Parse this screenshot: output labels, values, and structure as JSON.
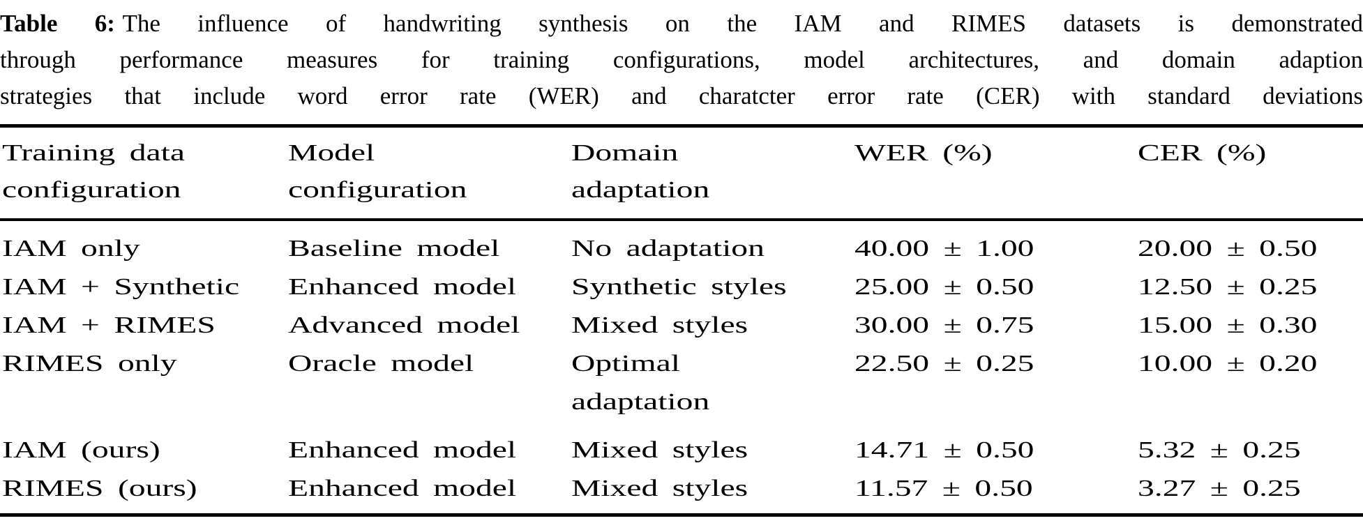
{
  "caption": {
    "label": "Table 6:",
    "line1_rest": "The influence of handwriting synthesis on the IAM and RIMES datasets is demonstrated",
    "line2": "through performance measures for training configurations, model architectures, and domain adaption",
    "line3": "strategies that include word error rate (WER) and charatcter error rate (CER) with standard deviations"
  },
  "table": {
    "headers": [
      "Training data\nconfiguration",
      "Model\nconfiguration",
      "Domain\nadaptation",
      "WER (%)",
      "CER (%)"
    ],
    "rows": [
      [
        "IAM only",
        "Baseline model",
        "No adaptation",
        "40.00 ± 1.00",
        "20.00 ± 0.50"
      ],
      [
        "IAM + Synthetic",
        "Enhanced model",
        "Synthetic styles",
        "25.00 ± 0.50",
        "12.50 ± 0.25"
      ],
      [
        "IAM + RIMES",
        "Advanced model",
        "Mixed styles",
        "30.00 ± 0.75",
        "15.00 ± 0.30"
      ],
      [
        "RIMES only",
        "Oracle model",
        "Optimal\nadaptation",
        "22.50 ± 0.25",
        "10.00 ± 0.20"
      ],
      [
        "IAM (ours)",
        "Enhanced model",
        "Mixed styles",
        "14.71 ± 0.50",
        "5.32 ± 0.25"
      ],
      [
        "RIMES (ours)",
        "Enhanced model",
        "Mixed styles",
        "11.57 ± 0.50",
        "3.27 ± 0.25"
      ]
    ]
  },
  "colors": {
    "text": "#000000",
    "background": "#ffffff",
    "rule": "#000000"
  }
}
